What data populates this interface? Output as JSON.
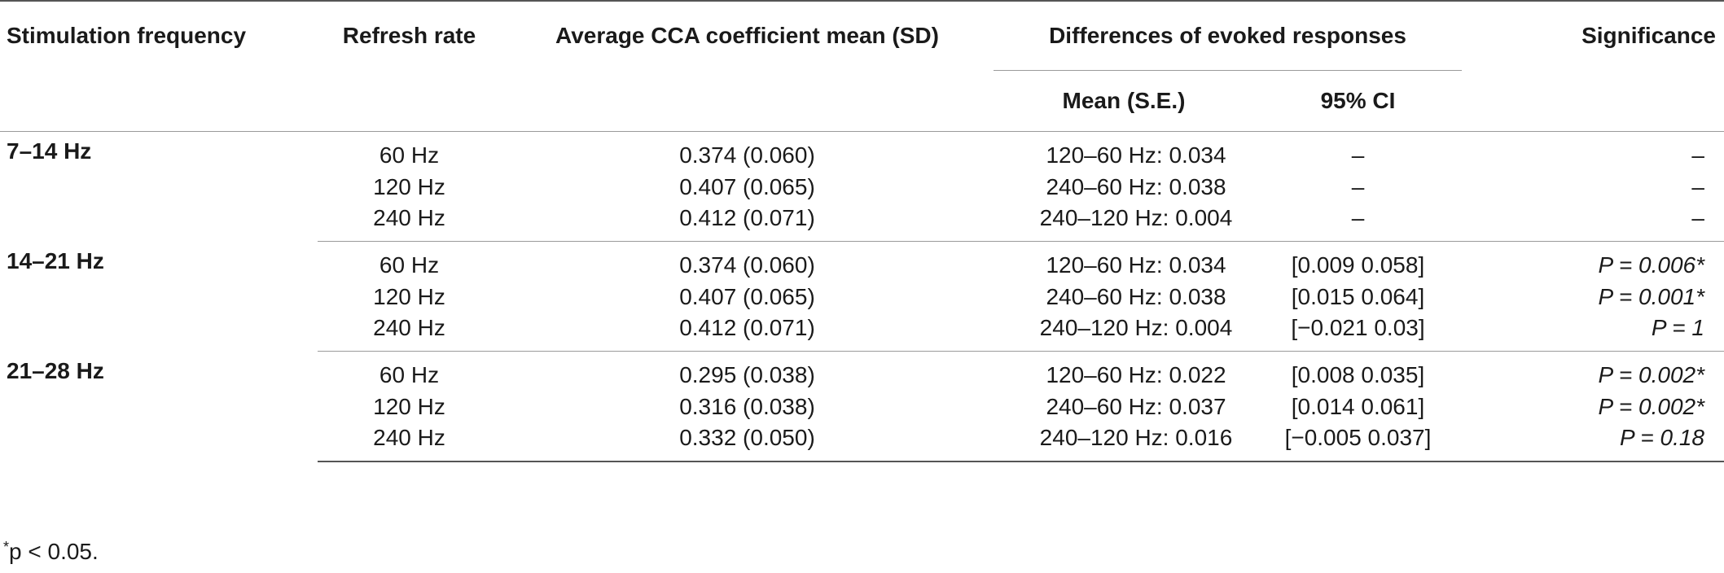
{
  "header": {
    "stim_freq": "Stimulation frequency",
    "refresh_rate": "Refresh rate",
    "avg_cca": "Average CCA coefficient mean (SD)",
    "diff_evoked": "Differences of evoked responses",
    "significance": "Significance",
    "mean_se": "Mean (S.E.)",
    "ci95": "95% CI"
  },
  "groups": [
    {
      "label": "7–14 Hz",
      "rows": [
        {
          "rate": "60 Hz",
          "cca": "0.374 (0.060)",
          "diff": "120–60 Hz: 0.034",
          "ci": "–",
          "sig": "–"
        },
        {
          "rate": "120 Hz",
          "cca": "0.407 (0.065)",
          "diff": "240–60 Hz: 0.038",
          "ci": "–",
          "sig": "–"
        },
        {
          "rate": "240 Hz",
          "cca": "0.412 (0.071)",
          "diff": "240–120 Hz: 0.004",
          "ci": "–",
          "sig": "–"
        }
      ]
    },
    {
      "label": "14–21 Hz",
      "rows": [
        {
          "rate": "60 Hz",
          "cca": "0.374 (0.060)",
          "diff": "120–60 Hz: 0.034",
          "ci": "[0.009 0.058]",
          "sig": "P = 0.006*"
        },
        {
          "rate": "120 Hz",
          "cca": "0.407 (0.065)",
          "diff": "240–60 Hz: 0.038",
          "ci": "[0.015 0.064]",
          "sig": "P = 0.001*"
        },
        {
          "rate": "240 Hz",
          "cca": "0.412 (0.071)",
          "diff": "240–120 Hz: 0.004",
          "ci": "[−0.021 0.03]",
          "sig": "P = 1"
        }
      ]
    },
    {
      "label": "21–28 Hz",
      "rows": [
        {
          "rate": "60 Hz",
          "cca": "0.295 (0.038)",
          "diff": "120–60 Hz: 0.022",
          "ci": "[0.008 0.035]",
          "sig": "P = 0.002*"
        },
        {
          "rate": "120 Hz",
          "cca": "0.316 (0.038)",
          "diff": "240–60 Hz: 0.037",
          "ci": "[0.014 0.061]",
          "sig": "P = 0.002*"
        },
        {
          "rate": "240 Hz",
          "cca": "0.332 (0.050)",
          "diff": "240–120 Hz: 0.016",
          "ci": "[−0.005 0.037]",
          "sig": "P = 0.18"
        }
      ]
    }
  ],
  "footnote": {
    "marker": "*",
    "text": "p < 0.05."
  }
}
